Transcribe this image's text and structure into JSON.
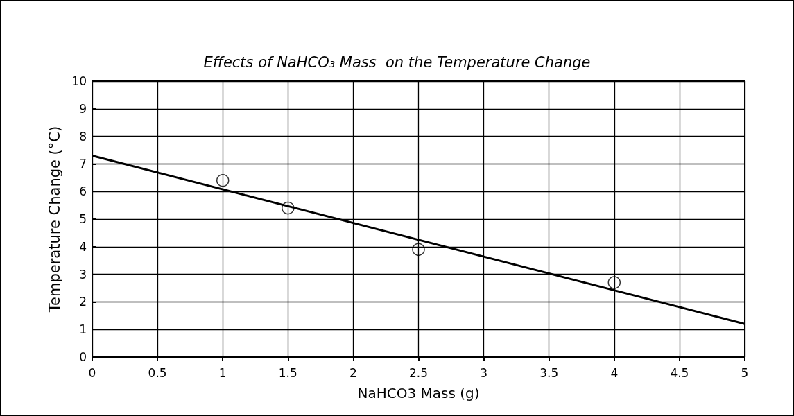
{
  "chart_data": {
    "type": "scatter",
    "title": "Effects of NaHCO₃ Mass  on the Temperature Change",
    "xlabel": "NaHCO3 Mass (g)",
    "ylabel": "Temperature Change (°C)",
    "series": [
      {
        "color": "#000000",
        "marker": "circle",
        "x": [
          1,
          1.5,
          2.5,
          4
        ],
        "values": [
          6.4,
          5.4,
          3.9,
          2.7
        ]
      },
      {
        "type": "line",
        "color": "#000000",
        "marker": "none",
        "line_style": "solid",
        "x": [
          0,
          5
        ],
        "values": [
          7.3,
          1.2
        ]
      }
    ],
    "xlim": [
      0,
      5
    ],
    "xticks": [
      0,
      0.5,
      1,
      1.5,
      2,
      2.5,
      3,
      3.5,
      4,
      4.5,
      5
    ],
    "ylim": [
      0,
      10
    ],
    "yticks": [
      0,
      1,
      2,
      3,
      4,
      5,
      6,
      7,
      8,
      9,
      10
    ],
    "grid": true
  }
}
